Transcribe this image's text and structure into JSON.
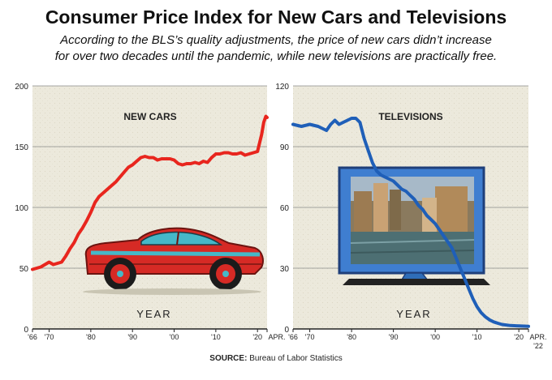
{
  "header": {
    "title": "Consumer Price Index for New Cars and Televisions",
    "subtitle_line1": "According to the BLS’s quality adjustments, the price of new cars didn’t increase",
    "subtitle_line2": "for over two decades until the pandemic, while new televisions are practically free."
  },
  "footer": {
    "source_label": "SOURCE:",
    "source_text": "Bureau of Labor Statistics"
  },
  "colors": {
    "cars_line": "#e8261e",
    "tv_line": "#1f5fb8",
    "background": "#ece9dc",
    "grid": "#8a8a8a"
  },
  "icons": {
    "cars_panel": "vintage-car-illustration-icon",
    "tv_panel": "flat-screen-tv-illustration-icon"
  },
  "chart_data": [
    {
      "type": "line",
      "panel_label": "NEW CARS",
      "xlabel": "YEAR",
      "ylim": [
        0,
        200
      ],
      "yticks": [
        0,
        50,
        100,
        150,
        200
      ],
      "xlim": [
        1966,
        2022.3
      ],
      "xticks": [
        {
          "x": 1966,
          "label": "'66"
        },
        {
          "x": 1970,
          "label": "'70"
        },
        {
          "x": 1980,
          "label": "'80"
        },
        {
          "x": 1990,
          "label": "'90"
        },
        {
          "x": 2000,
          "label": "'00"
        },
        {
          "x": 2010,
          "label": "'10"
        },
        {
          "x": 2020,
          "label": "'20"
        },
        {
          "x": 2022.3,
          "label": "APR."
        }
      ],
      "series": [
        {
          "x": [
            1966,
            1968,
            1970,
            1971,
            1972,
            1973,
            1974,
            1975,
            1976,
            1977,
            1978,
            1979,
            1980,
            1981,
            1982,
            1983,
            1984,
            1985,
            1986,
            1987,
            1988,
            1989,
            1990,
            1991,
            1992,
            1993,
            1994,
            1995,
            1996,
            1997,
            1998,
            1999,
            2000,
            2001,
            2002,
            2003,
            2004,
            2005,
            2006,
            2007,
            2008,
            2009,
            2010,
            2011,
            2012,
            2013,
            2014,
            2015,
            2016,
            2017,
            2018,
            2019,
            2020,
            2021,
            2021.5,
            2022,
            2022.3
          ],
          "y": [
            49,
            51,
            55,
            53,
            54,
            55,
            60,
            66,
            71,
            78,
            83,
            89,
            96,
            104,
            109,
            112,
            115,
            118,
            121,
            125,
            129,
            133,
            135,
            138,
            141,
            142,
            141,
            141,
            139,
            140,
            140,
            140,
            139,
            136,
            135,
            136,
            136,
            137,
            136,
            138,
            137,
            141,
            144,
            144,
            145,
            145,
            144,
            144,
            145,
            143,
            144,
            145,
            146,
            160,
            170,
            175,
            174
          ]
        }
      ]
    },
    {
      "type": "line",
      "panel_label": "TELEVISIONS",
      "xlabel": "YEAR",
      "ylim": [
        0,
        120
      ],
      "yticks": [
        0,
        30,
        60,
        90,
        120
      ],
      "xlim": [
        1966,
        2022.3
      ],
      "xticks": [
        {
          "x": 1966,
          "label": "'66"
        },
        {
          "x": 1970,
          "label": "'70"
        },
        {
          "x": 1980,
          "label": "'80"
        },
        {
          "x": 1990,
          "label": "'90"
        },
        {
          "x": 2000,
          "label": "'00"
        },
        {
          "x": 2010,
          "label": "'10"
        },
        {
          "x": 2020,
          "label": "'20"
        },
        {
          "x": 2022.3,
          "label": "APR."
        }
      ],
      "series": [
        {
          "x": [
            1966,
            1968,
            1970,
            1972,
            1974,
            1975,
            1976,
            1977,
            1978,
            1979,
            1980,
            1981,
            1982,
            1983,
            1984,
            1985,
            1986,
            1987,
            1988,
            1989,
            1990,
            1991,
            1992,
            1993,
            1994,
            1995,
            1996,
            1997,
            1998,
            1999,
            2000,
            2001,
            2002,
            2003,
            2004,
            2005,
            2006,
            2007,
            2008,
            2009,
            2010,
            2011,
            2012,
            2013,
            2014,
            2015,
            2016,
            2018,
            2020,
            2022.3
          ],
          "y": [
            101,
            100,
            101,
            100,
            98,
            101,
            103,
            101,
            102,
            103,
            104,
            104,
            102,
            94,
            88,
            82,
            78,
            76,
            75,
            74,
            73,
            71,
            69,
            68,
            66,
            64,
            61,
            59,
            56,
            54,
            52,
            49,
            46,
            43,
            40,
            35,
            30,
            25,
            20,
            15,
            11,
            8,
            6,
            4.5,
            3.5,
            2.8,
            2.2,
            1.7,
            1.5,
            1.3
          ]
        }
      ],
      "year_tick_sub_label": "'22"
    }
  ]
}
